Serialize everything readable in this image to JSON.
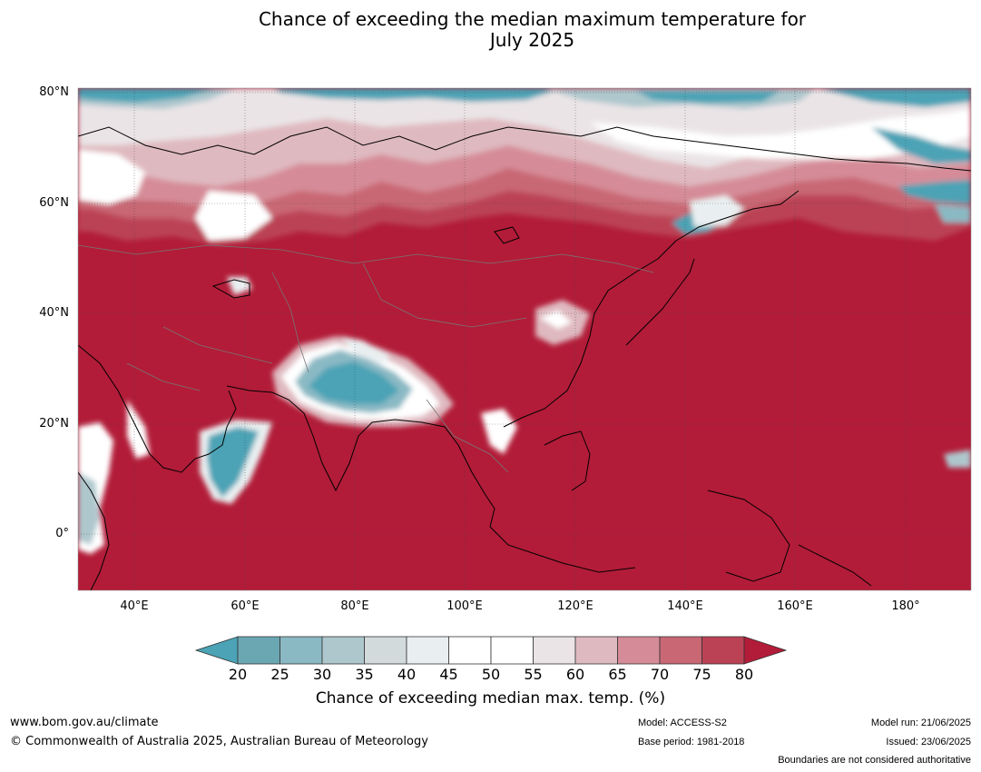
{
  "title": {
    "line1": "Chance of exceeding the median maximum temperature for",
    "line2": "July 2025"
  },
  "map": {
    "lat_labels": [
      "80°N",
      "60°N",
      "40°N",
      "20°N",
      "0°"
    ],
    "lon_labels": [
      "40°E",
      "60°E",
      "80°E",
      "100°E",
      "120°E",
      "140°E",
      "160°E",
      "180°"
    ],
    "colors": {
      "c20": "#4ba3b5",
      "c25": "#6aa7b3",
      "c30": "#8ab9c4",
      "c35": "#aec7cd",
      "c40": "#d3dadb",
      "c45": "#e9eff0",
      "c50": "#ffffff",
      "c55": "#ffffff",
      "c60": "#eae4e6",
      "c65": "#dfb9c0",
      "c70": "#d58c98",
      "c75": "#c96774",
      "c80": "#bb4254",
      "c80plus": "#b21c38"
    }
  },
  "colorbar": {
    "ticks": [
      "20",
      "25",
      "30",
      "35",
      "40",
      "45",
      "50",
      "55",
      "60",
      "65",
      "70",
      "75",
      "80"
    ],
    "label": "Chance of exceeding median max. temp. (%)"
  },
  "footer": {
    "url": "www.bom.gov.au/climate",
    "copyright": "© Commonwealth of Australia 2025, Australian Bureau of Meteorology",
    "model": "Model: ACCESS-S2",
    "base_period": "Base period: 1981-2018",
    "model_run": "Model run: 21/06/2025",
    "issued": "Issued: 23/06/2025",
    "disclaimer": "Boundaries are not considered authoritative"
  }
}
